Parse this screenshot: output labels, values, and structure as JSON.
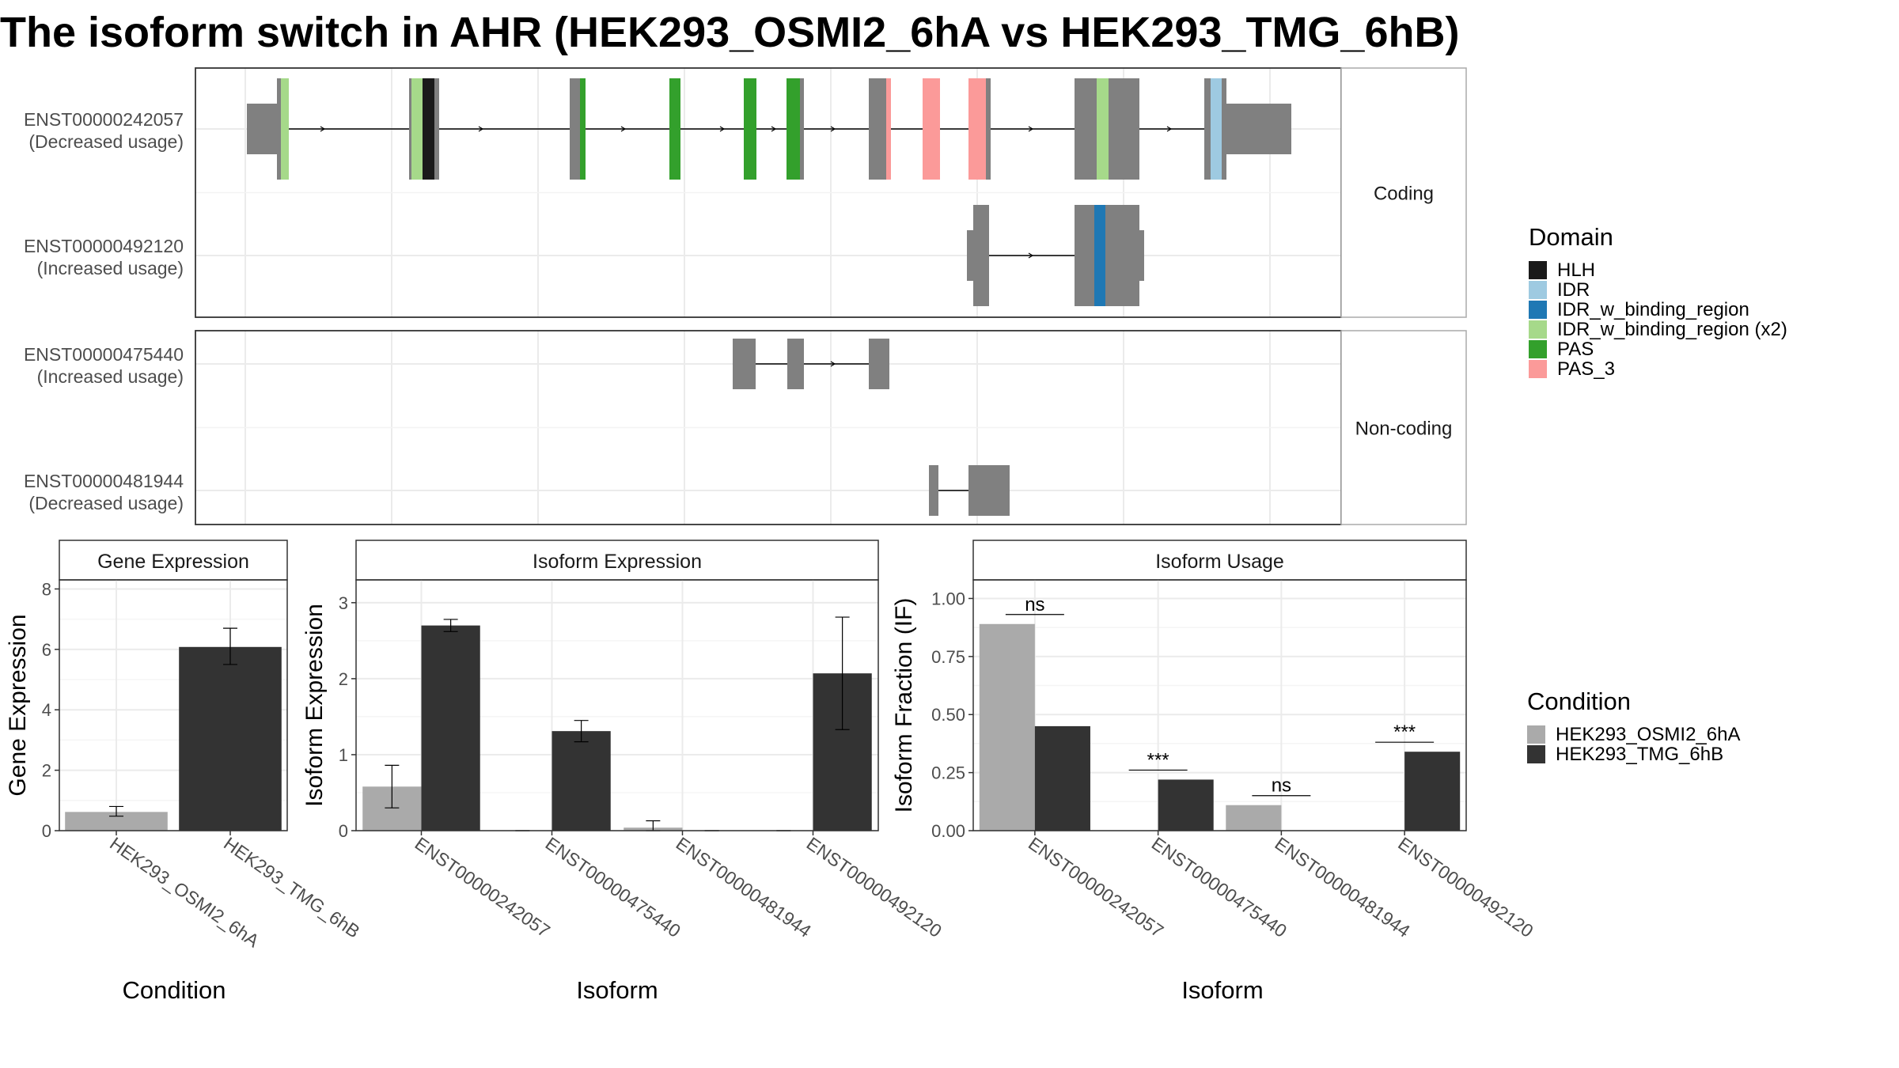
{
  "title": "The isoform switch in AHR (HEK293_OSMI2_6hA vs HEK293_TMG_6hB)",
  "colors": {
    "exon": "#808080",
    "cond_a": "#aaaaaa",
    "cond_b": "#333333",
    "HLH": "#1a1a1a",
    "IDR": "#9ecae1",
    "IDR_w_binding_region": "#1f78b4",
    "IDR_w_binding_region_x2": "#a6d98a",
    "PAS": "#33a02c",
    "PAS_3": "#fb9a99"
  },
  "transcripts": {
    "facets": [
      "Coding",
      "Non-coding"
    ],
    "rows": [
      {
        "id": "ENST00000242057",
        "usage": "(Decreased usage)"
      },
      {
        "id": "ENST00000492120",
        "usage": "(Increased usage)"
      },
      {
        "id": "ENST00000475440",
        "usage": "(Increased usage)"
      },
      {
        "id": "ENST00000481944",
        "usage": "(Decreased usage)"
      }
    ]
  },
  "legend": {
    "domain_title": "Domain",
    "domain_items": [
      {
        "label": "HLH",
        "color": "#1a1a1a"
      },
      {
        "label": "IDR",
        "color": "#9ecae1"
      },
      {
        "label": "IDR_w_binding_region",
        "color": "#1f78b4"
      },
      {
        "label": "IDR_w_binding_region (x2)",
        "color": "#a6d98a"
      },
      {
        "label": "PAS",
        "color": "#33a02c"
      },
      {
        "label": "PAS_3",
        "color": "#fb9a99"
      }
    ],
    "condition_title": "Condition",
    "condition_items": [
      {
        "label": "HEK293_OSMI2_6hA",
        "color": "#aaaaaa"
      },
      {
        "label": "HEK293_TMG_6hB",
        "color": "#333333"
      }
    ]
  },
  "chart_data": [
    {
      "type": "bar",
      "title": "Gene Expression",
      "xlabel": "Condition",
      "ylabel": "Gene Expression",
      "categories": [
        "HEK293_OSMI2_6hA",
        "HEK293_TMG_6hB"
      ],
      "values": [
        0.62,
        6.08
      ],
      "error_low": [
        0.48,
        5.5
      ],
      "error_high": [
        0.8,
        6.7
      ],
      "ylim": [
        0,
        8.3
      ],
      "yticks": [
        "0",
        "2",
        "4",
        "6",
        "8"
      ],
      "grid": true
    },
    {
      "type": "bar",
      "title": "Isoform Expression",
      "xlabel": "Isoform",
      "ylabel": "Isoform Expression",
      "categories": [
        "ENST00000242057",
        "ENST00000475440",
        "ENST00000481944",
        "ENST00000492120"
      ],
      "series": [
        {
          "name": "HEK293_OSMI2_6hA",
          "values": [
            0.58,
            0,
            0.04,
            0
          ],
          "error_low": [
            0.3,
            0,
            0,
            0
          ],
          "error_high": [
            0.86,
            0,
            0.13,
            0
          ]
        },
        {
          "name": "HEK293_TMG_6hB",
          "values": [
            2.7,
            1.31,
            0,
            2.07
          ],
          "error_low": [
            2.62,
            1.17,
            0,
            1.33
          ],
          "error_high": [
            2.78,
            1.45,
            0,
            2.81
          ]
        }
      ],
      "ylim": [
        0,
        3.3
      ],
      "yticks": [
        "0",
        "1",
        "2",
        "3"
      ],
      "grid": true
    },
    {
      "type": "bar",
      "title": "Isoform Usage",
      "xlabel": "Isoform",
      "ylabel": "Isoform Fraction (IF)",
      "categories": [
        "ENST00000242057",
        "ENST00000475440",
        "ENST00000481944",
        "ENST00000492120"
      ],
      "series": [
        {
          "name": "HEK293_OSMI2_6hA",
          "values": [
            0.89,
            0,
            0.11,
            0
          ]
        },
        {
          "name": "HEK293_TMG_6hB",
          "values": [
            0.45,
            0.22,
            0,
            0.34
          ]
        }
      ],
      "significance": [
        "ns",
        "***",
        "ns",
        "***"
      ],
      "ylim": [
        0,
        1.08
      ],
      "yticks": [
        "0.00",
        "0.25",
        "0.50",
        "0.75",
        "1.00"
      ],
      "grid": true
    }
  ]
}
